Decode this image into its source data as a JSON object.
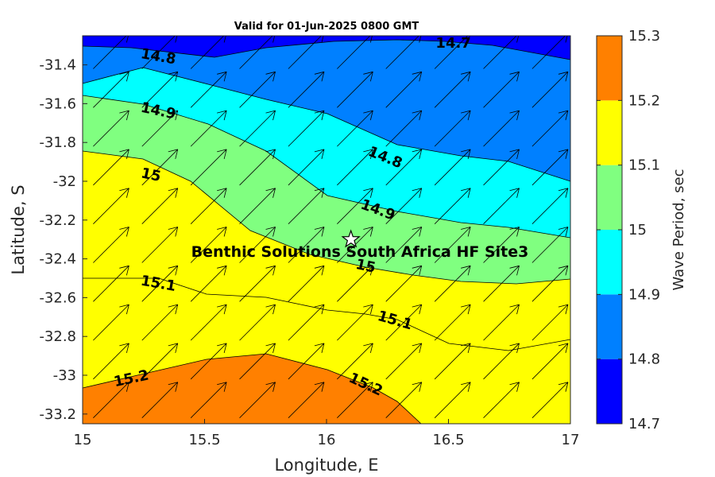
{
  "title": "Valid for 01-Jun-2025 0800 GMT",
  "x_label": "Longitude, E",
  "y_label": "Latitude, S",
  "colorbar_label": "Wave Period, sec",
  "site_label": "Benthic Solutions South Africa HF Site3",
  "site_marker": {
    "lon": 16.1,
    "lat": -32.3
  },
  "chart_data": {
    "type": "contour",
    "xlim": [
      15,
      17
    ],
    "ylim": [
      -33.25,
      -31.25
    ],
    "x_ticks": [
      "15",
      "15.5",
      "16",
      "16.5",
      "17"
    ],
    "y_ticks": [
      "-31.4",
      "-31.6",
      "-31.8",
      "-32",
      "-32.2",
      "-32.4",
      "-32.6",
      "-32.8",
      "-33",
      "-33.2"
    ],
    "levels": [
      14.7,
      14.8,
      14.9,
      15.0,
      15.1,
      15.2,
      15.3
    ],
    "level_colors": [
      "#0000ff",
      "#0080ff",
      "#00ffff",
      "#80ff80",
      "#ffff00",
      "#ff8000"
    ],
    "colorbar_ticks": [
      "15.3",
      "15.2",
      "15.1",
      "15",
      "14.9",
      "14.8",
      "14.7"
    ],
    "contour_labels": [
      {
        "text": "14.7",
        "lon": 16.52,
        "lat": -31.29
      },
      {
        "text": "14.8",
        "lon": 15.31,
        "lat": -31.36
      },
      {
        "text": "14.8",
        "lon": 16.24,
        "lat": -31.88
      },
      {
        "text": "14.9",
        "lon": 15.31,
        "lat": -31.64
      },
      {
        "text": "14.9",
        "lon": 16.21,
        "lat": -32.15
      },
      {
        "text": "15",
        "lon": 15.28,
        "lat": -31.97
      },
      {
        "text": "15",
        "lon": 16.16,
        "lat": -32.44
      },
      {
        "text": "15.1",
        "lon": 15.31,
        "lat": -32.53
      },
      {
        "text": "15.1",
        "lon": 16.28,
        "lat": -32.72
      },
      {
        "text": "15.2",
        "lon": 15.2,
        "lat": -33.02
      },
      {
        "text": "15.2",
        "lon": 16.16,
        "lat": -33.05
      }
    ],
    "vector_field": {
      "lons": [
        15.05,
        15.25,
        15.45,
        15.65,
        15.85,
        16.05,
        16.25,
        16.45,
        16.65,
        16.85
      ],
      "lats": [
        -31.33,
        -31.53,
        -31.73,
        -31.93,
        -32.13,
        -32.33,
        -32.53,
        -32.73,
        -32.93,
        -33.13
      ],
      "direction": "toward north-east"
    },
    "grid": false
  }
}
